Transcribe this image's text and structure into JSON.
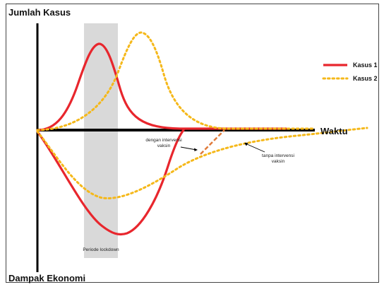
{
  "labels": {
    "y_top": "Jumlah Kasus",
    "y_bottom": "Dampak  Ekonomi",
    "x_axis": "Waktu",
    "lockdown": "Periode lockdown",
    "with_vaccine_l1": "dengan intervensi",
    "with_vaccine_l2": "vaksin",
    "without_vaccine_l1": "tanpa intervensi",
    "without_vaccine_l2": "vaksin"
  },
  "legend": [
    {
      "name": "Kasus 1",
      "style": "solid",
      "color": "#e8262d"
    },
    {
      "name": "Kasus 2",
      "style": "dotted",
      "color": "#f5b81a"
    }
  ],
  "colors": {
    "case1": "#e8262d",
    "case2": "#f5b81a",
    "vaccine_arrow": "#e07a3a",
    "lockdown_band": "#d9d9d9",
    "axis": "#000000",
    "border": "#333333"
  },
  "icons": {
    "legend_solid": "solid-line-swatch",
    "legend_dotted": "dotted-line-swatch"
  }
}
